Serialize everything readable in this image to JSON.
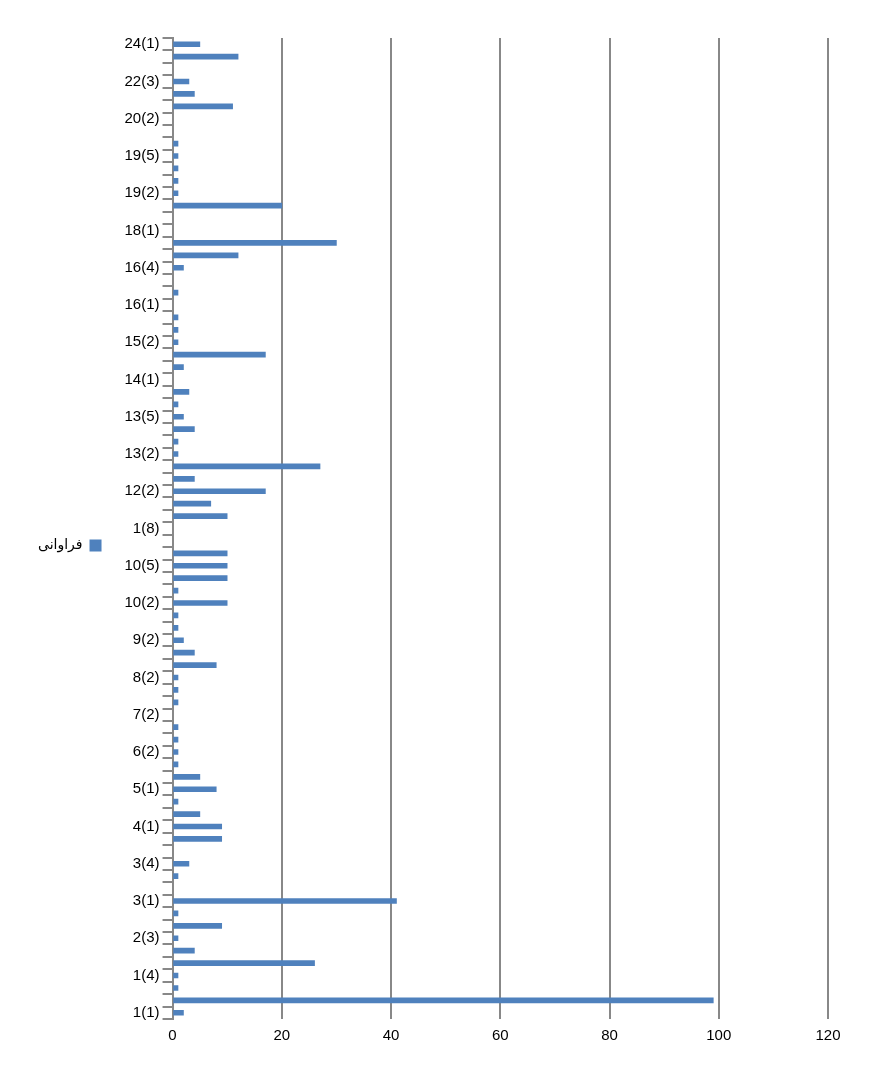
{
  "chart_data": {
    "type": "bar",
    "orientation": "horizontal",
    "categories": [
      "24(1)",
      null,
      null,
      "22(3)",
      null,
      null,
      "20(2)",
      null,
      null,
      "19(5)",
      null,
      null,
      "19(2)",
      null,
      null,
      "18(1)",
      null,
      null,
      "16(4)",
      null,
      null,
      "16(1)",
      null,
      null,
      "15(2)",
      null,
      null,
      "14(1)",
      null,
      null,
      "13(5)",
      null,
      null,
      "13(2)",
      null,
      null,
      "12(2)",
      null,
      null,
      "1(8)",
      null,
      null,
      "10(5)",
      null,
      null,
      "10(2)",
      null,
      null,
      "9(2)",
      null,
      null,
      "8(2)",
      null,
      null,
      "7(2)",
      null,
      null,
      "6(2)",
      null,
      null,
      "5(1)",
      null,
      null,
      "4(1)",
      null,
      null,
      "3(4)",
      null,
      null,
      "3(1)",
      null,
      null,
      "2(3)",
      null,
      null,
      "1(4)",
      null,
      null,
      "1(1)"
    ],
    "series": [
      {
        "name": "فراوانی",
        "color": "#4f81bd",
        "values": [
          5,
          12,
          null,
          3,
          4,
          11,
          null,
          null,
          1,
          1,
          1,
          1,
          1,
          20,
          null,
          null,
          30,
          12,
          2,
          null,
          1,
          null,
          1,
          1,
          1,
          17,
          2,
          null,
          3,
          1,
          2,
          4,
          1,
          1,
          27,
          4,
          17,
          7,
          10,
          null,
          null,
          10,
          10,
          10,
          1,
          10,
          1,
          1,
          2,
          4,
          8,
          1,
          1,
          1,
          null,
          1,
          1,
          1,
          1,
          5,
          8,
          1,
          5,
          9,
          9,
          null,
          3,
          1,
          null,
          41,
          1,
          9,
          1,
          4,
          26,
          1,
          1,
          99,
          2
        ]
      }
    ],
    "xlim": [
      0,
      120
    ],
    "xticks": [
      0,
      20,
      40,
      60,
      80,
      100,
      120
    ],
    "grid": "x",
    "legend": "left"
  }
}
